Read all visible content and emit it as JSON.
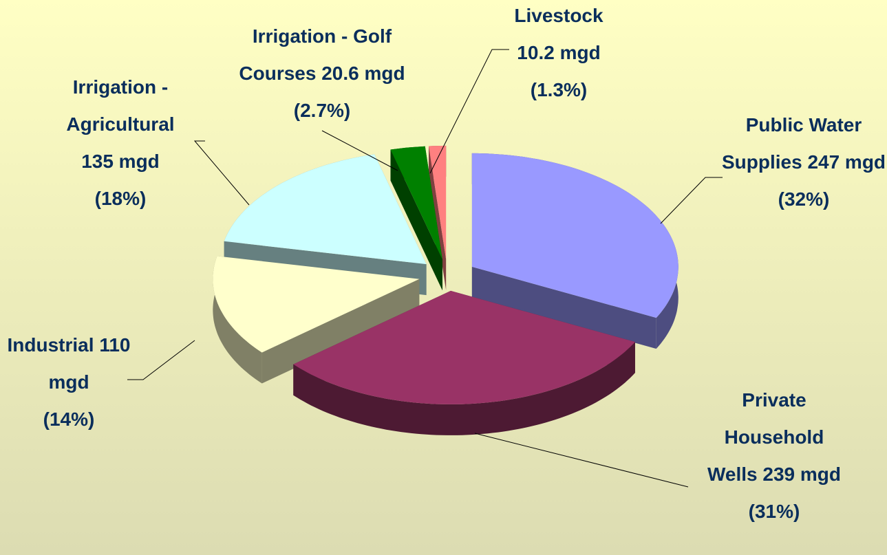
{
  "chart_data": {
    "type": "pie3d",
    "categories": [
      "Public Water Supplies",
      "Private Household Wells",
      "Industrial",
      "Irrigation - Agricultural",
      "Irrigation - Golf Courses",
      "Livestock"
    ],
    "values": [
      247,
      239,
      110,
      135,
      20.6,
      10.2
    ],
    "value_labels": [
      "247 mgd",
      "239 mgd",
      "110 mgd",
      "135 mgd",
      "20.6 mgd",
      "10.2 mgd"
    ],
    "percents": [
      32,
      31,
      14,
      18,
      2.7,
      1.3
    ],
    "percent_labels": [
      "(32%)",
      "(31%)",
      "(14%)",
      "(18%)",
      "(2.7%)",
      "(1.3%)"
    ],
    "colors": [
      "#9999ff",
      "#993366",
      "#ffffcc",
      "#ccffff",
      "#008000",
      "#ff8080"
    ]
  }
}
